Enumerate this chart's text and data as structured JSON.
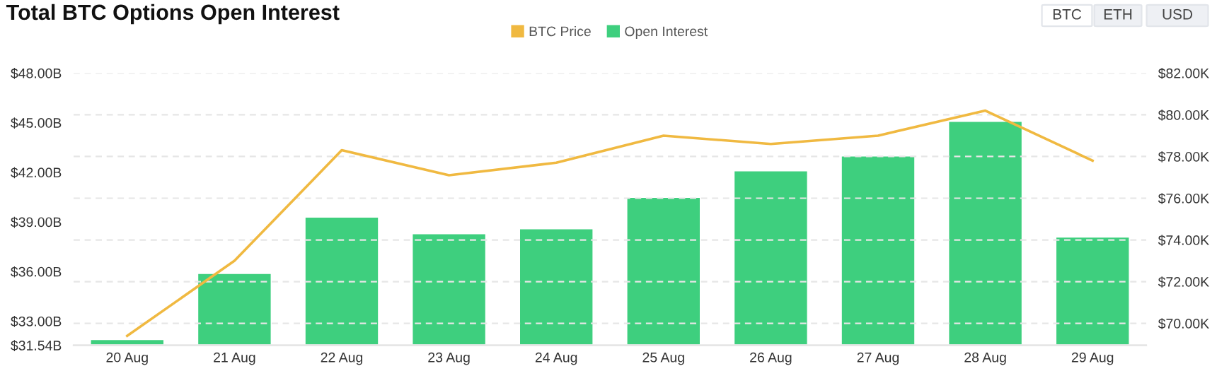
{
  "chart_data": {
    "type": "bar",
    "title": "Total BTC Options Open Interest",
    "categories": [
      "20 Aug",
      "21 Aug",
      "22 Aug",
      "23 Aug",
      "24 Aug",
      "25 Aug",
      "26 Aug",
      "27 Aug",
      "28 Aug",
      "29 Aug"
    ],
    "series": [
      {
        "name": "BTC Price",
        "type": "line",
        "axis": "y2",
        "color": "#f0b941",
        "values": [
          69.4,
          73.0,
          78.3,
          77.1,
          77.7,
          79.0,
          78.6,
          79.0,
          80.2,
          77.8
        ]
      },
      {
        "name": "Open Interest",
        "color": "#3ecf7e",
        "values": [
          31.9,
          35.9,
          39.3,
          38.3,
          38.6,
          40.5,
          42.1,
          43.0,
          45.1,
          38.1
        ]
      }
    ],
    "ylim": [
      31.54,
      48
    ],
    "yticks": [
      {
        "value": 31.54,
        "label": "$31.54B"
      },
      {
        "value": 33,
        "label": "$33.00B"
      },
      {
        "value": 36,
        "label": "$36.00B"
      },
      {
        "value": 39,
        "label": "$39.00B"
      },
      {
        "value": 42,
        "label": "$42.00B"
      },
      {
        "value": 45,
        "label": "$45.00B"
      },
      {
        "value": 48,
        "label": "$48.00B"
      }
    ],
    "y2lim": [
      68.95,
      82
    ],
    "y2ticks": [
      {
        "value": 70,
        "label": "$70.00K"
      },
      {
        "value": 72,
        "label": "$72.00K"
      },
      {
        "value": 74,
        "label": "$74.00K"
      },
      {
        "value": 76,
        "label": "$76.00K"
      },
      {
        "value": 78,
        "label": "$78.00K"
      },
      {
        "value": 80,
        "label": "$80.00K"
      },
      {
        "value": 82,
        "label": "$82.00K"
      }
    ],
    "grid": "y2",
    "legend": "top",
    "marker": "none",
    "annotations": [
      "BTC",
      "ETH",
      "USD"
    ]
  }
}
